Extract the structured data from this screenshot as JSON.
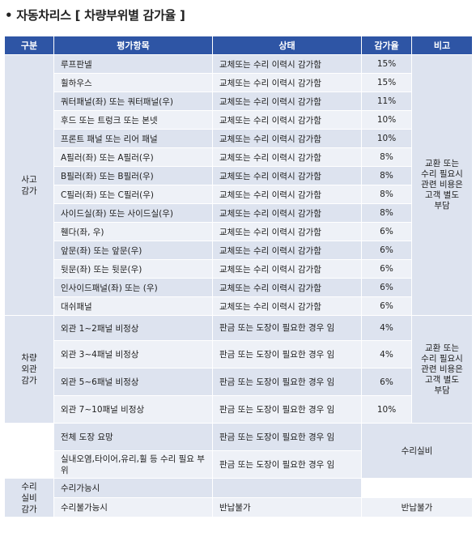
{
  "title": "• 자동차리스 [ 차량부위별 감가율 ]",
  "headers": [
    "구분",
    "평가항목",
    "상태",
    "감가율",
    "비고"
  ],
  "groups": {
    "accident": "사고\n감가",
    "exterior": "차량\n외관\n감가",
    "repair": "수리\n실비\n감가"
  },
  "rows": [
    {
      "item": "루프판넬",
      "status": "교체또는 수리 이력시 감가함",
      "rate": "15%"
    },
    {
      "item": "휠하우스",
      "status": "교체또는 수리 이력시 감가함",
      "rate": "15%"
    },
    {
      "item": "쿼터패널(좌) 또는 쿼터패널(우)",
      "status": "교체또는 수리 이력시 감가함",
      "rate": "11%"
    },
    {
      "item": "후드 또는 트렁크 또는 본넷",
      "status": "교체또는 수리 이력시 감가함",
      "rate": "10%"
    },
    {
      "item": "프론트 패널 또는 리어 패널",
      "status": "교체또는 수리 이력시 감가함",
      "rate": "10%"
    },
    {
      "item": "A필러(좌) 또는 A필러(우)",
      "status": "교체또는 수리 이력시 감가함",
      "rate": "8%"
    },
    {
      "item": "B필러(좌) 또는 B필러(우)",
      "status": "교체또는 수리 이력시 감가함",
      "rate": "8%"
    },
    {
      "item": "C필러(좌) 또는 C필러(우)",
      "status": "교체또는 수리 이력시 감가함",
      "rate": "8%"
    },
    {
      "item": "사이드실(좌) 또는 사이드실(우)",
      "status": "교체또는 수리 이력시 감가함",
      "rate": "8%"
    },
    {
      "item": "휀다(좌, 우)",
      "status": "교체또는 수리 이력시 감가함",
      "rate": "6%"
    },
    {
      "item": "앞문(좌) 또는 앞문(우)",
      "status": "교체또는 수리 이력시 감가함",
      "rate": "6%"
    },
    {
      "item": "뒷문(좌) 또는 뒷문(우)",
      "status": "교체또는 수리 이력시 감가함",
      "rate": "6%"
    },
    {
      "item": "인사이드패널(좌) 또는 (우)",
      "status": "교체또는 수리 이력시 감가함",
      "rate": "6%"
    },
    {
      "item": "대쉬패널",
      "status": "교체또는 수리 이력시 감가함",
      "rate": "6%"
    },
    {
      "item": "외관 1~2패널 비정상",
      "status": "판금 또는 도장이 필요한 경우 임",
      "rate": "4%"
    },
    {
      "item": "외관 3~4패널 비정상",
      "status": "판금 또는 도장이 필요한 경우 임",
      "rate": "4%"
    },
    {
      "item": "외관 5~6패널 비정상",
      "status": "판금 또는 도장이 필요한 경우 임",
      "rate": "6%"
    },
    {
      "item": "외관 7~10패널 비정상",
      "status": "판금 또는 도장이 필요한 경우 임",
      "rate": "10%"
    },
    {
      "item": "전체 도장 요망",
      "status": "판금 또는 도장이 필요한 경우 임",
      "rate": ""
    },
    {
      "item": "실내오염,타이어,유리,휠 등 수리 필요 부위",
      "status": "판금 또는 도장이 필요한 경우 임",
      "rate": ""
    },
    {
      "item": "수리가능시",
      "status": "",
      "rate": ""
    },
    {
      "item": "수리불가능시",
      "status": "반납불가",
      "rate": ""
    }
  ],
  "notes": {
    "accident": "교환 또는 수리 필요시 관련 비용은 고객 별도 부담",
    "exterior": "교환 또는 수리 필요시 관련 비용은 고객 별도 부담",
    "repair_cost": "수리실비",
    "no_return": "반납불가"
  }
}
